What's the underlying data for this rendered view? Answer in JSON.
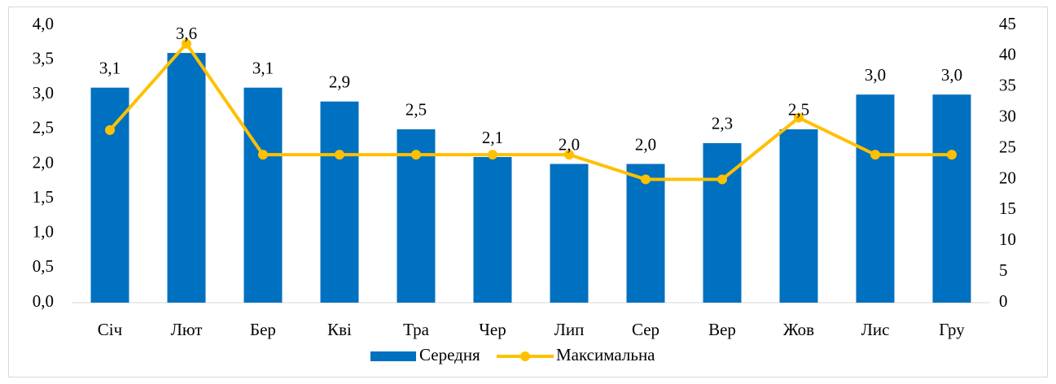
{
  "chart_data": {
    "type": "bar",
    "categories": [
      "Січ",
      "Лют",
      "Бер",
      "Кві",
      "Тра",
      "Чер",
      "Лип",
      "Сер",
      "Вер",
      "Жов",
      "Лис",
      "Гру"
    ],
    "series": [
      {
        "name": "Середня",
        "type": "bar",
        "color": "#0070c0",
        "axis": "y",
        "values": [
          3.1,
          3.6,
          3.1,
          2.9,
          2.5,
          2.1,
          2.0,
          2.0,
          2.3,
          2.5,
          3.0,
          3.0
        ],
        "value_labels": [
          "3,1",
          "3,6",
          "3,1",
          "2,9",
          "2,5",
          "2,1",
          "2,0",
          "2,0",
          "2,3",
          "2,5",
          "3,0",
          "3,0"
        ]
      },
      {
        "name": "Максимальна",
        "type": "line",
        "color": "#ffc000",
        "axis": "y2",
        "values": [
          28,
          42,
          24,
          24,
          24,
          24,
          24,
          20,
          20,
          30,
          24,
          24
        ]
      }
    ],
    "ylim": [
      0,
      4
    ],
    "yticks": [
      {
        "value": 0,
        "label": "0,0"
      },
      {
        "value": 0.5,
        "label": "0,5"
      },
      {
        "value": 1,
        "label": "1,0"
      },
      {
        "value": 1.5,
        "label": "1,5"
      },
      {
        "value": 2,
        "label": "2,0"
      },
      {
        "value": 2.5,
        "label": "2,5"
      },
      {
        "value": 3,
        "label": "3,0"
      },
      {
        "value": 3.5,
        "label": "3,5"
      },
      {
        "value": 4,
        "label": "4,0"
      }
    ],
    "y2lim": [
      0,
      45
    ],
    "y2ticks": [
      0,
      5,
      10,
      15,
      20,
      25,
      30,
      35,
      40,
      45
    ],
    "legend": "bottom"
  }
}
